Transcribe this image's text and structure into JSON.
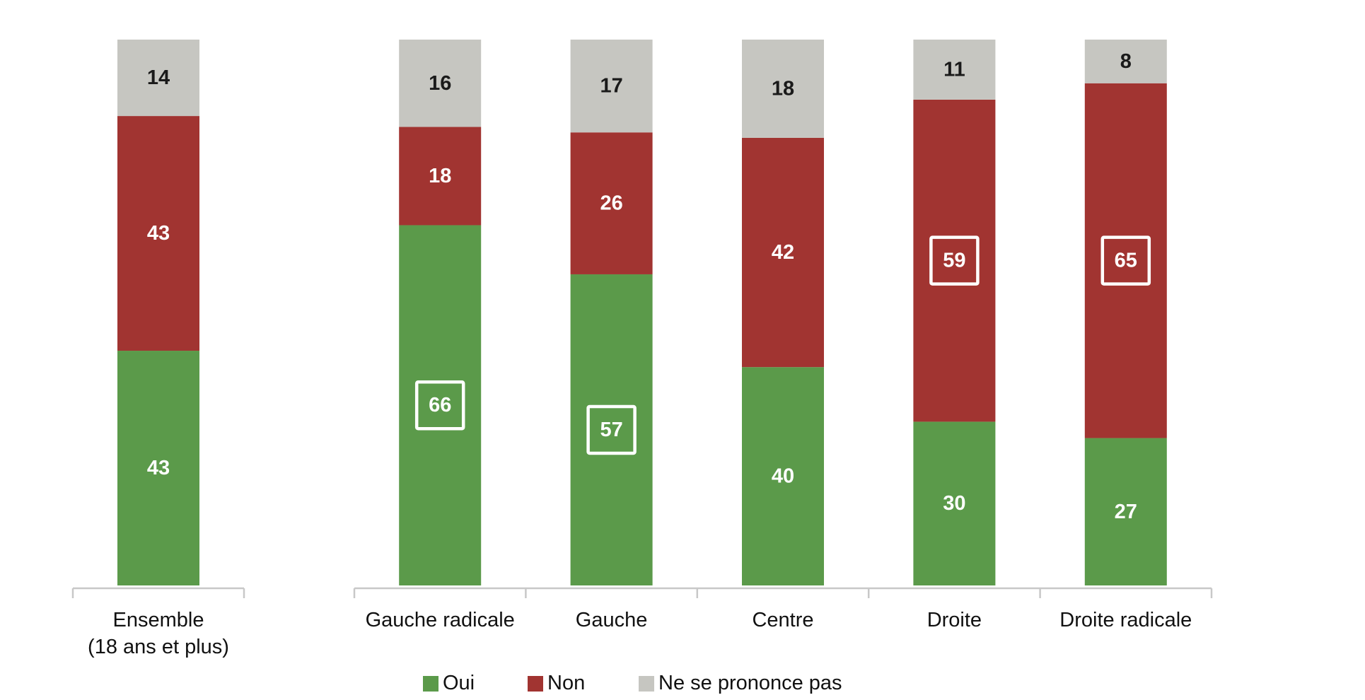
{
  "chart_data": [
    {
      "type": "stacked-bar",
      "categories": [
        "Ensemble\n(18 ans et plus)"
      ],
      "ylim": [
        0,
        100
      ],
      "series": [
        {
          "color": "#5b9a4a",
          "values": [
            43
          ],
          "boxed": [
            false
          ]
        },
        {
          "color": "#a13431",
          "values": [
            43
          ],
          "boxed": [
            false
          ]
        },
        {
          "color": "#c6c6c1",
          "values": [
            14
          ],
          "boxed": [
            false
          ]
        }
      ]
    },
    {
      "type": "stacked-bar",
      "categories": [
        "Gauche radicale",
        "Gauche",
        "Centre",
        "Droite",
        "Droite radicale"
      ],
      "ylim": [
        0,
        100
      ],
      "series": [
        {
          "name": "Oui",
          "color": "#5b9a4a",
          "values": [
            66,
            57,
            40,
            30,
            27
          ],
          "boxed": [
            true,
            true,
            false,
            false,
            false
          ]
        },
        {
          "name": "Non",
          "color": "#a13431",
          "values": [
            18,
            26,
            42,
            59,
            65
          ],
          "boxed": [
            false,
            false,
            false,
            true,
            true
          ]
        },
        {
          "name": "Ne se prononce pas",
          "color": "#c6c6c1",
          "values": [
            16,
            17,
            18,
            11,
            8
          ],
          "boxed": [
            false,
            false,
            false,
            false,
            false
          ]
        }
      ]
    }
  ]
}
